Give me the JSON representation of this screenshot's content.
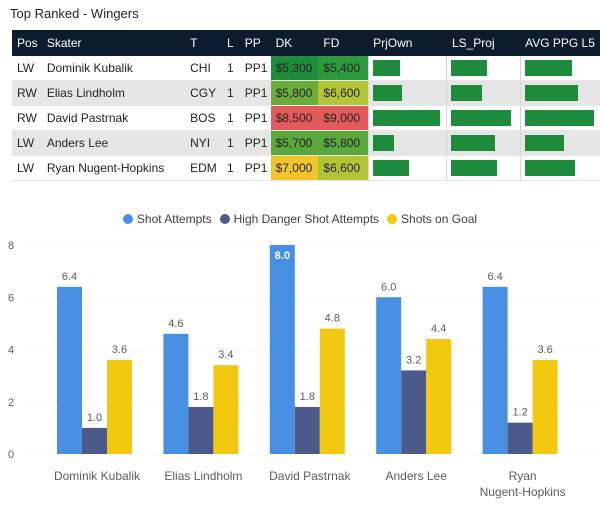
{
  "page": {
    "title": "Top Ranked - Wingers"
  },
  "table": {
    "columns": [
      "Pos",
      "Skater",
      "T",
      "L",
      "PP",
      "DK",
      "FD",
      "PrjOwn",
      "LS_Proj",
      "AVG PPG L5"
    ],
    "rows": [
      {
        "pos": "LW",
        "skater": "Dominik Kubalik",
        "team": "CHI",
        "line": "1",
        "pp": "PP1",
        "dk": "$5,300",
        "fd": "$5,400",
        "dk_color": "#1f8b3d",
        "fd_color": "#2e9a3e",
        "prj_own": 0.39,
        "ls_proj": 0.55,
        "avg_ppg": 0.66
      },
      {
        "pos": "RW",
        "skater": "Elias Lindholm",
        "team": "CGY",
        "line": "1",
        "pp": "PP1",
        "dk": "$5,800",
        "fd": "$6,600",
        "dk_color": "#6aad3a",
        "fd_color": "#b3c537",
        "prj_own": 0.42,
        "ls_proj": 0.47,
        "avg_ppg": 0.74
      },
      {
        "pos": "RW",
        "skater": "David Pastrnak",
        "team": "BOS",
        "line": "1",
        "pp": "PP1",
        "dk": "$8,500",
        "fd": "$9,000",
        "dk_color": "#e35a5a",
        "fd_color": "#e35a5a",
        "prj_own": 0.95,
        "ls_proj": 0.92,
        "avg_ppg": 0.96
      },
      {
        "pos": "LW",
        "skater": "Anders Lee",
        "team": "NYI",
        "line": "1",
        "pp": "PP1",
        "dk": "$5,700",
        "fd": "$5,800",
        "dk_color": "#58a83b",
        "fd_color": "#58a83b",
        "prj_own": 0.3,
        "ls_proj": 0.67,
        "avg_ppg": 0.55
      },
      {
        "pos": "LW",
        "skater": "Ryan Nugent-Hopkins",
        "team": "EDM",
        "line": "1",
        "pp": "PP1",
        "dk": "$7,000",
        "fd": "$6,600",
        "dk_color": "#f2c52b",
        "fd_color": "#b3c537",
        "prj_own": 0.52,
        "ls_proj": 0.7,
        "avg_ppg": 0.69
      }
    ]
  },
  "chart_data": {
    "type": "bar",
    "categories": [
      "Dominik Kubalik",
      "Elias Lindholm",
      "David Pastrnak",
      "Anders Lee",
      "Ryan Nugent-Hopkins"
    ],
    "category_lines": [
      [
        "Dominik Kubalik"
      ],
      [
        "Elias Lindholm"
      ],
      [
        "David Pastrnak"
      ],
      [
        "Anders Lee"
      ],
      [
        "Ryan",
        "Nugent-Hopkins"
      ]
    ],
    "series": [
      {
        "name": "Shot Attempts",
        "color": "#4a90e2",
        "values": [
          6.4,
          4.6,
          8.0,
          6.0,
          6.4
        ],
        "labels": [
          "6.4",
          "4.6",
          "8.0",
          "6.0",
          "6.4"
        ]
      },
      {
        "name": "High Danger Shot Attempts",
        "color": "#4b5a8a",
        "values": [
          1.0,
          1.8,
          1.8,
          3.2,
          1.2
        ],
        "labels": [
          "1.0",
          "1.8",
          "1.8",
          "3.2",
          "1.2"
        ]
      },
      {
        "name": "Shots on Goal",
        "color": "#f2c811",
        "values": [
          3.6,
          3.4,
          4.8,
          4.4,
          3.6
        ],
        "labels": [
          "3.6",
          "3.4",
          "4.8",
          "4.4",
          "3.6"
        ]
      }
    ],
    "ylim": [
      0,
      8
    ],
    "yticks": [
      "0",
      "2",
      "4",
      "6",
      "8"
    ],
    "grid": true,
    "legend": "top-center"
  }
}
